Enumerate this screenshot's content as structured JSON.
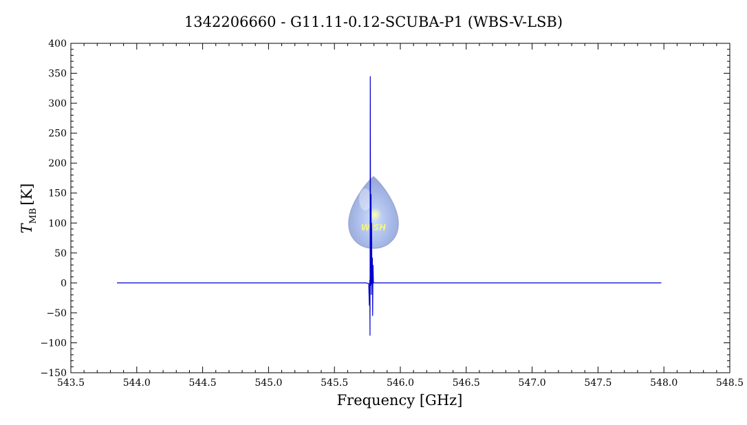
{
  "chart_data": {
    "type": "line",
    "title": "1342206660 - G11.11-0.12-SCUBA-P1 (WBS-V-LSB)",
    "xlabel": "Frequency [GHz]",
    "ylabel_main": "T",
    "ylabel_sub": "MB",
    "ylabel_unit": "[K]",
    "xlim": [
      543.5,
      548.5
    ],
    "ylim": [
      -150,
      400
    ],
    "xticks": [
      543.5,
      544.0,
      544.5,
      545.0,
      545.5,
      546.0,
      546.5,
      547.0,
      547.5,
      548.0,
      548.5
    ],
    "xtick_labels": [
      "543.5",
      "544.0",
      "544.5",
      "545.0",
      "545.5",
      "546.0",
      "546.5",
      "547.0",
      "547.5",
      "548.0",
      "548.5"
    ],
    "yticks": [
      -150,
      -100,
      -50,
      0,
      50,
      100,
      150,
      200,
      250,
      300,
      350,
      400
    ],
    "ytick_labels": [
      "−150",
      "−100",
      "−50",
      "0",
      "50",
      "100",
      "150",
      "200",
      "250",
      "300",
      "350",
      "400"
    ],
    "grid": false,
    "colors": {
      "series": "#0000cc",
      "frame": "#000000",
      "logo": "#9aaee0"
    },
    "series": [
      {
        "x": [
          543.85,
          545.74,
          545.76,
          545.765,
          545.768,
          545.77,
          545.772,
          545.775,
          545.778,
          545.78,
          545.782,
          545.785,
          545.788,
          545.79,
          545.793,
          545.796,
          545.8,
          545.82,
          547.98
        ],
        "y": [
          0,
          0,
          -1,
          -38,
          5,
          -88,
          345,
          -5,
          148,
          -20,
          100,
          -2,
          42,
          -55,
          30,
          0,
          0,
          0,
          0
        ]
      }
    ],
    "logo_text": "WISH"
  }
}
